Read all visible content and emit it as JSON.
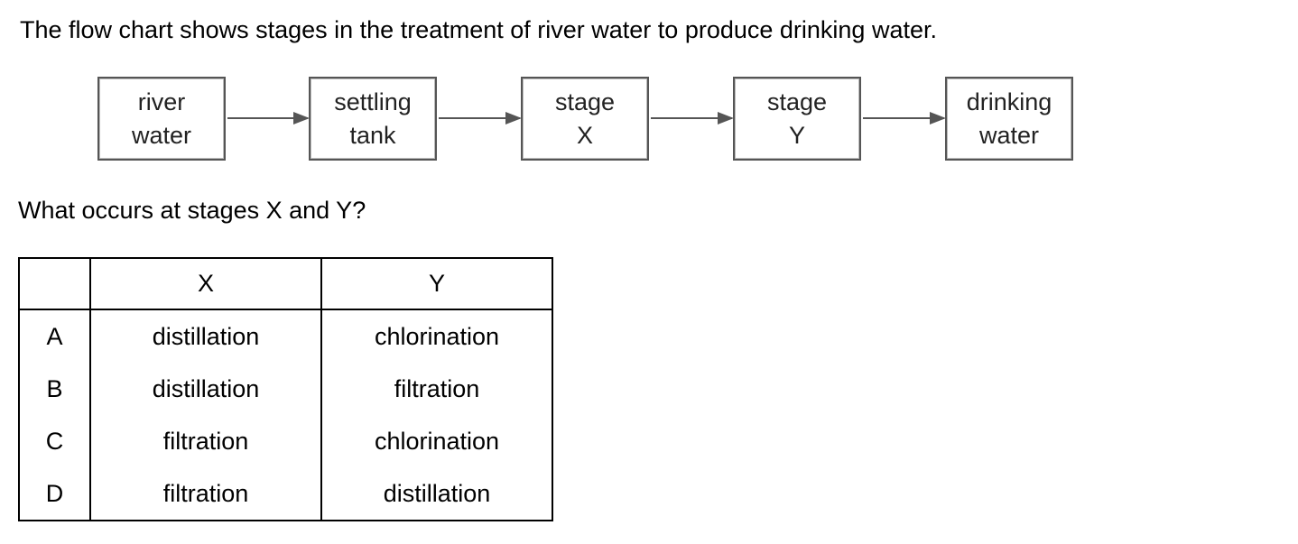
{
  "intro_text": "The flow chart shows stages in the treatment of river water to produce drinking water.",
  "flow_chart": {
    "boxes": [
      {
        "line1": "river",
        "line2": "water"
      },
      {
        "line1": "settling",
        "line2": "tank"
      },
      {
        "line1": "stage",
        "line2": "X"
      },
      {
        "line1": "stage",
        "line2": "Y"
      },
      {
        "line1": "drinking",
        "line2": "water"
      }
    ]
  },
  "question_text": "What occurs at stages X and Y?",
  "options_table": {
    "headers": [
      "",
      "X",
      "Y"
    ],
    "rows": [
      {
        "letter": "A",
        "x": "distillation",
        "y": "chlorination"
      },
      {
        "letter": "B",
        "x": "distillation",
        "y": "filtration"
      },
      {
        "letter": "C",
        "x": "filtration",
        "y": "chlorination"
      },
      {
        "letter": "D",
        "x": "filtration",
        "y": "distillation"
      }
    ]
  }
}
